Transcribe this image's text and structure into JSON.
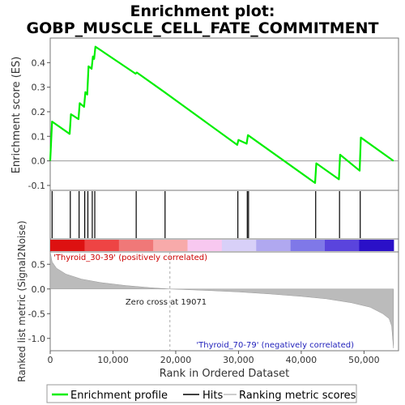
{
  "title_line1": "Enrichment plot:",
  "title_line2": "GOBP_MUSCLE_CELL_FATE_COMMITMENT",
  "es_ylabel": "Enrichment score (ES)",
  "metric_ylabel": "Ranked list metric (Signal2Noise)",
  "xlabel": "Rank in Ordered Dataset",
  "pos_label": "'Thyroid_30-39' (positively correlated)",
  "neg_label": "'Thyroid_70-79' (negatively correlated)",
  "zero_cross_label": "Zero cross at 19071",
  "legend": {
    "profile": "Enrichment profile",
    "hits": "Hits",
    "metric": "Ranking metric scores"
  },
  "colors": {
    "profile": "#00ee00",
    "hits": "#000000",
    "metric": "#bbbbbb",
    "pos_text": "#cc0000",
    "neg_text": "#2222bb"
  },
  "chart_data": {
    "type": "line",
    "title": "Enrichment plot: GOBP_MUSCLE_CELL_FATE_COMMITMENT",
    "xlabel": "Rank in Ordered Dataset",
    "ylabel": "Enrichment score (ES)",
    "xlim": [
      0,
      55500
    ],
    "ylim_es": [
      -0.12,
      0.5
    ],
    "ylim_metric": [
      -1.25,
      0.75
    ],
    "x_ticks": [
      0,
      10000,
      20000,
      30000,
      40000,
      50000
    ],
    "x_tick_labels": [
      "0",
      "10,000",
      "20,000",
      "30,000",
      "40,000",
      "50,000"
    ],
    "es_ticks": [
      -0.1,
      0.0,
      0.1,
      0.2,
      0.3,
      0.4
    ],
    "es_tick_labels": [
      "-0.1",
      "0.0",
      "0.1",
      "0.2",
      "0.3",
      "0.4"
    ],
    "metric_ticks": [
      -1.0,
      -0.5,
      0.0,
      0.5
    ],
    "metric_tick_labels": [
      "-1.0",
      "-0.5",
      "0.0",
      "0.5"
    ],
    "enrichment_profile": {
      "x": [
        0,
        300,
        3100,
        3300,
        4500,
        4700,
        5400,
        5600,
        5900,
        6100,
        6600,
        6800,
        7000,
        7200,
        13600,
        13800,
        18200,
        29800,
        30000,
        31300,
        31500,
        42200,
        42400,
        46000,
        46200,
        49300,
        49500,
        54700
      ],
      "y": [
        0.0,
        0.16,
        0.11,
        0.19,
        0.17,
        0.235,
        0.22,
        0.28,
        0.27,
        0.385,
        0.375,
        0.425,
        0.415,
        0.465,
        0.355,
        0.36,
        0.28,
        0.065,
        0.085,
        0.07,
        0.105,
        -0.09,
        -0.01,
        -0.075,
        0.025,
        -0.04,
        0.095,
        0.0
      ]
    },
    "hits": [
      300,
      3200,
      4600,
      5500,
      6000,
      6700,
      7100,
      13700,
      18300,
      29900,
      31400,
      31600,
      42300,
      46100,
      49400
    ],
    "metric_profile": {
      "x": [
        0,
        300,
        1000,
        2500,
        5000,
        8000,
        12000,
        16000,
        19071,
        25000,
        30000,
        35000,
        40000,
        44000,
        48000,
        51000,
        53000,
        54000,
        54400,
        54700
      ],
      "y": [
        0.75,
        0.55,
        0.42,
        0.3,
        0.2,
        0.13,
        0.07,
        0.025,
        0.0,
        -0.03,
        -0.06,
        -0.1,
        -0.15,
        -0.2,
        -0.28,
        -0.37,
        -0.5,
        -0.6,
        -0.75,
        -1.2
      ]
    },
    "zero_cross": 19071,
    "gradient_stops": [
      "#dd1111",
      "#ee4444",
      "#f07878",
      "#f8aaaa",
      "#f8c8f0",
      "#d8d0f8",
      "#b0a8f0",
      "#7f78e8",
      "#5a44dd",
      "#2a10c8"
    ]
  }
}
